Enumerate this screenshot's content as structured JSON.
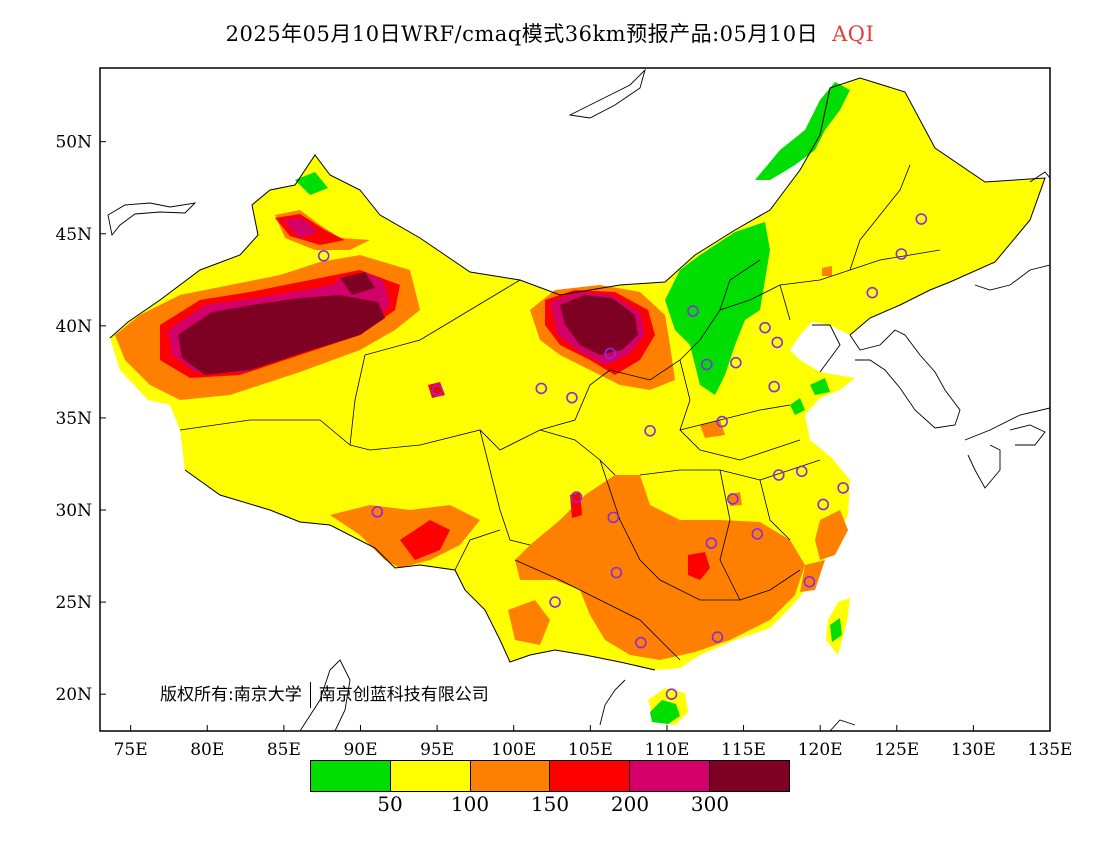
{
  "title": {
    "main": "2025年05月10日WRF/cmaq模式36km预报产品:05月10日",
    "field": "AQI"
  },
  "map": {
    "lon_ticks": [
      "75E",
      "80E",
      "85E",
      "90E",
      "95E",
      "100E",
      "105E",
      "110E",
      "115E",
      "120E",
      "125E",
      "130E",
      "135E"
    ],
    "lat_ticks": [
      "20N",
      "25N",
      "30N",
      "35N",
      "40N",
      "45N",
      "50N"
    ],
    "lon_range": [
      73,
      135
    ],
    "lat_range": [
      18,
      54
    ]
  },
  "copyright": {
    "owner": "版权所有:南京大学",
    "partner": "南京创蓝科技有限公司"
  },
  "legend": {
    "colors": [
      "#00dd00",
      "#ffff00",
      "#ff8000",
      "#ff0000",
      "#d4006a",
      "#7e0023"
    ],
    "labels": [
      "50",
      "100",
      "150",
      "200",
      "300"
    ]
  },
  "stations": [
    [
      87.6,
      43.8
    ],
    [
      91.1,
      29.9
    ],
    [
      95.0,
      36.5
    ],
    [
      101.8,
      36.6
    ],
    [
      103.8,
      36.1
    ],
    [
      104.1,
      30.7
    ],
    [
      106.5,
      29.6
    ],
    [
      106.7,
      26.6
    ],
    [
      102.7,
      25.0
    ],
    [
      108.3,
      22.8
    ],
    [
      110.3,
      20.0
    ],
    [
      113.3,
      23.1
    ],
    [
      106.3,
      38.5
    ],
    [
      111.7,
      40.8
    ],
    [
      112.6,
      37.9
    ],
    [
      114.5,
      38.0
    ],
    [
      116.4,
      39.9
    ],
    [
      117.2,
      39.1
    ],
    [
      117.0,
      36.7
    ],
    [
      113.6,
      34.8
    ],
    [
      108.9,
      34.3
    ],
    [
      112.9,
      28.2
    ],
    [
      114.3,
      30.6
    ],
    [
      115.9,
      28.7
    ],
    [
      117.3,
      31.9
    ],
    [
      118.8,
      32.1
    ],
    [
      120.2,
      30.3
    ],
    [
      121.5,
      31.2
    ],
    [
      119.3,
      26.1
    ],
    [
      123.4,
      41.8
    ],
    [
      125.3,
      43.9
    ],
    [
      126.6,
      45.8
    ]
  ]
}
